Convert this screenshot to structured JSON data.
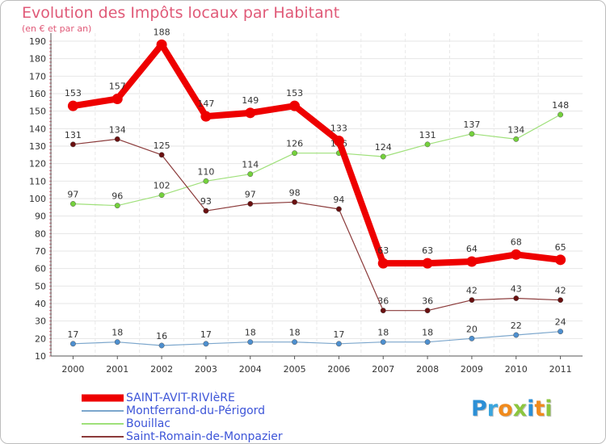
{
  "header": {
    "title": "Evolution des Impôts locaux par Habitant",
    "subtitle": "(en € et par an)"
  },
  "logo": {
    "text": "Proxiti",
    "letters": [
      {
        "ch": "P",
        "color": "#2b8fd6"
      },
      {
        "ch": "r",
        "color": "#3aa5de"
      },
      {
        "ch": "o",
        "color": "#f08a1c"
      },
      {
        "ch": "x",
        "color": "#8cc63f"
      },
      {
        "ch": "i",
        "color": "#2b8fd6"
      },
      {
        "ch": "t",
        "color": "#f08a1c"
      },
      {
        "ch": "i",
        "color": "#8cc63f"
      }
    ]
  },
  "chart_data": {
    "type": "line",
    "title": "Evolution des Impôts locaux par Habitant",
    "subtitle": "(en € et par an)",
    "xlabel": "",
    "ylabel": "",
    "x": [
      "2000",
      "2001",
      "2002",
      "2003",
      "2004",
      "2005",
      "2006",
      "2007",
      "2008",
      "2009",
      "2010",
      "2011"
    ],
    "ylim": [
      10,
      190
    ],
    "yticks": [
      10,
      20,
      30,
      40,
      50,
      60,
      70,
      80,
      90,
      100,
      110,
      120,
      130,
      140,
      150,
      160,
      170,
      180,
      190
    ],
    "grid": true,
    "legend_position": "bottom-left",
    "series": [
      {
        "name": "SAINT-AVIT-RIVIèRE",
        "color": "#ee0000",
        "marker": "#ee0000",
        "values": [
          153,
          157,
          188,
          147,
          149,
          153,
          133,
          63,
          63,
          64,
          68,
          65
        ]
      },
      {
        "name": "Montferrand-du-Périgord",
        "color": "#7ba6cc",
        "marker": "#4d8fcf",
        "values": [
          17,
          18,
          16,
          17,
          18,
          18,
          17,
          18,
          18,
          20,
          22,
          24
        ]
      },
      {
        "name": "Bouillac",
        "color": "#9fe07a",
        "marker": "#74d13c",
        "values": [
          97,
          96,
          102,
          110,
          114,
          126,
          126,
          124,
          131,
          137,
          134,
          148
        ]
      },
      {
        "name": "Saint-Romain-de-Monpazier",
        "color": "#8b3a3a",
        "marker": "#6a1010",
        "values": [
          131,
          134,
          125,
          93,
          97,
          98,
          94,
          36,
          36,
          42,
          43,
          42
        ]
      }
    ]
  }
}
